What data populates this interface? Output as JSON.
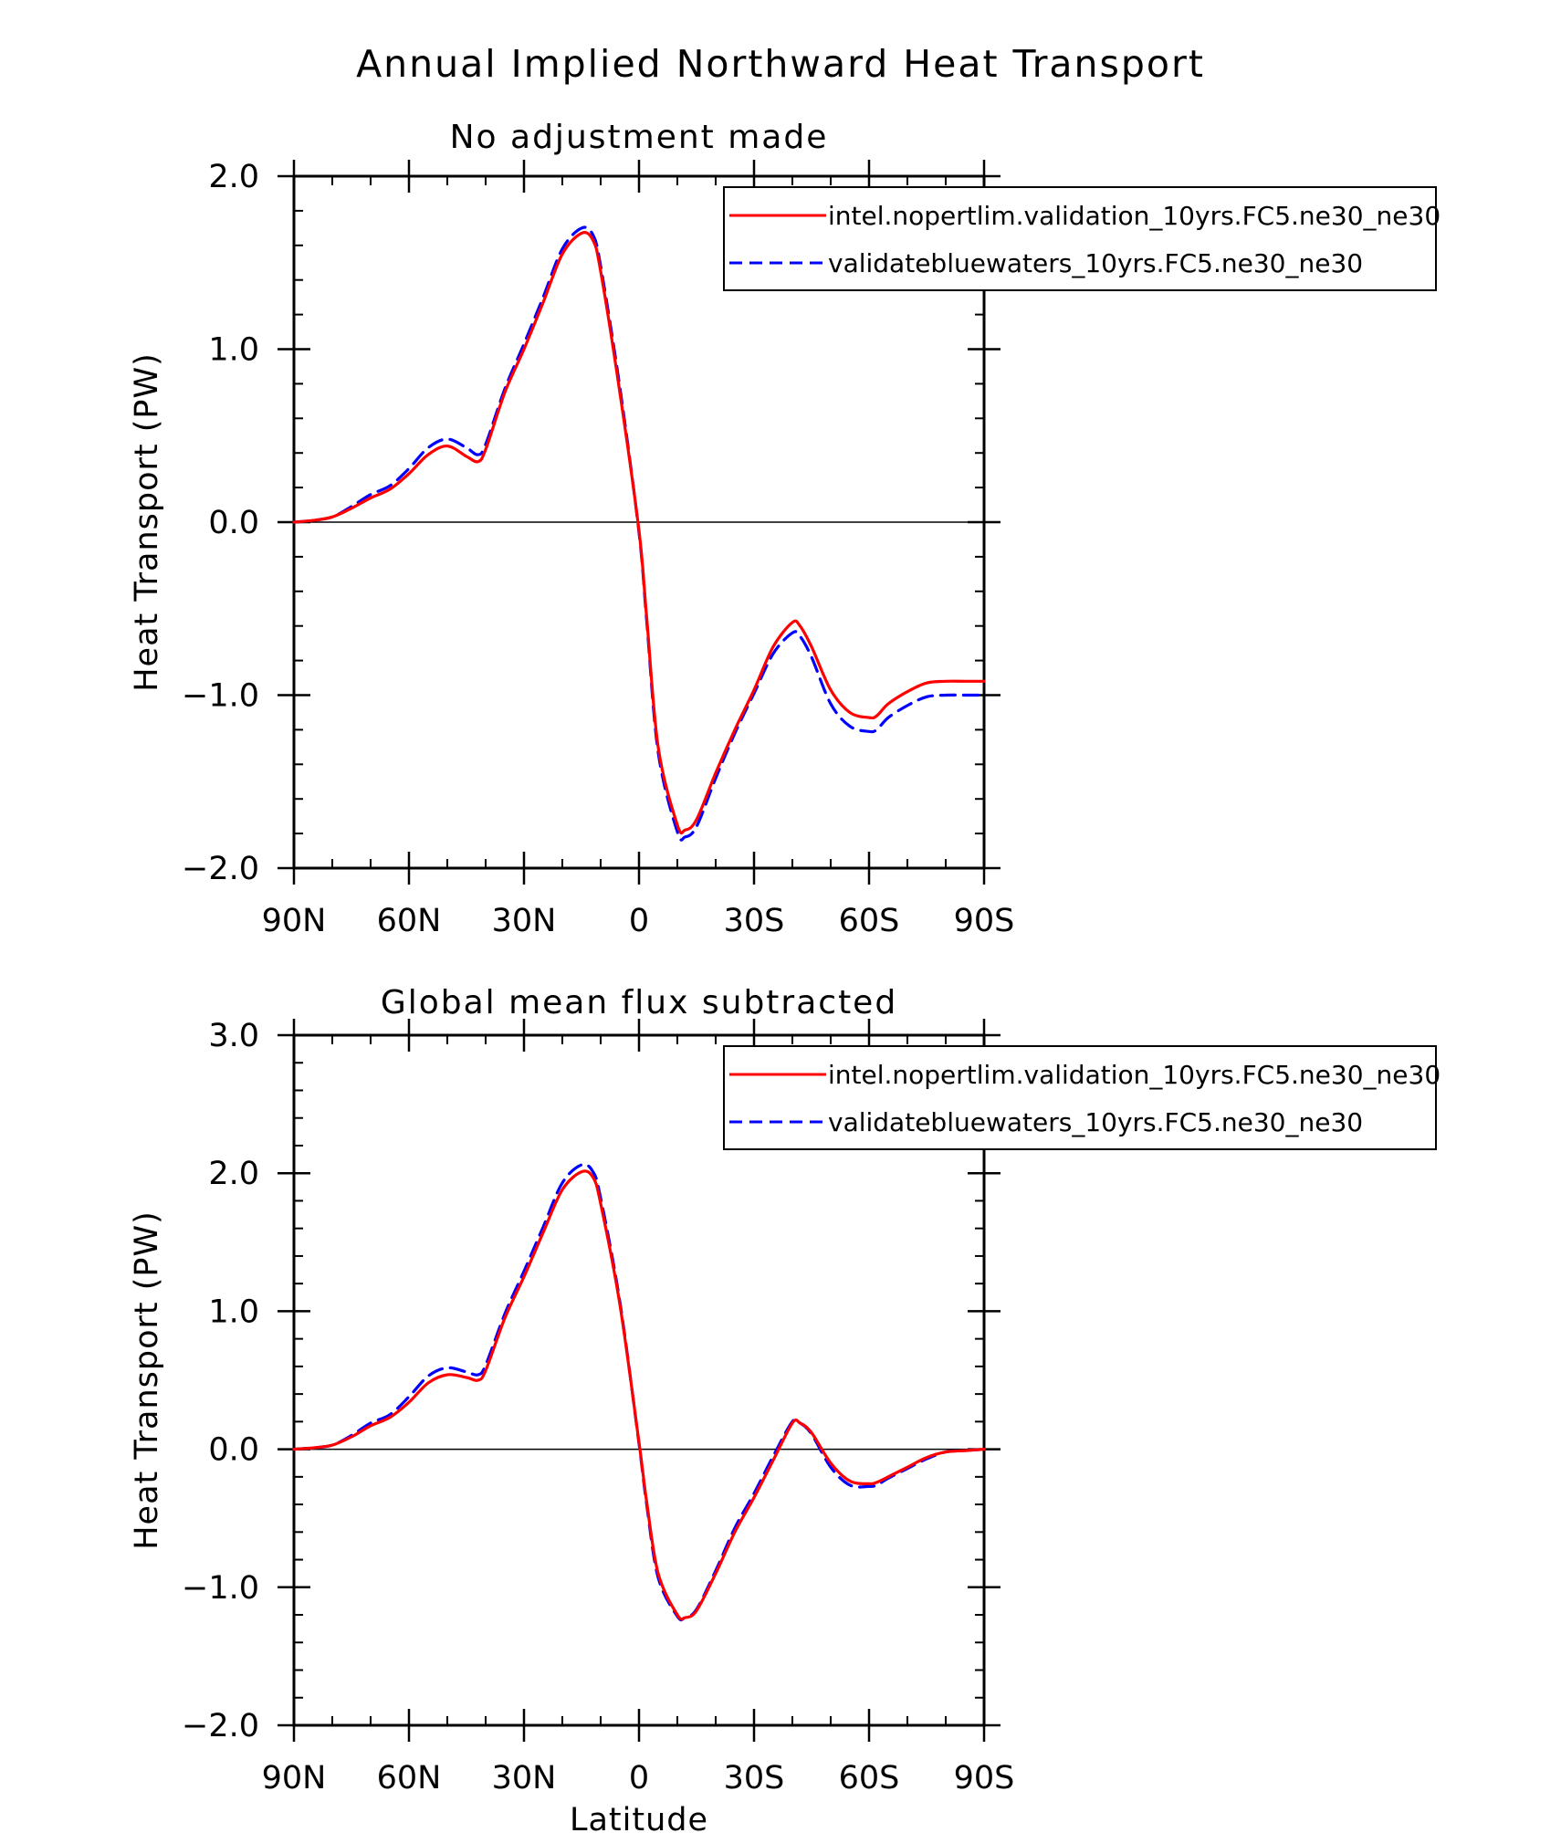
{
  "figure_title": "Annual Implied Northward Heat Transport",
  "legend": [
    {
      "label": "intel.nopertlim.validation_10yrs.FC5.ne30_ne30",
      "color": "#ff0000",
      "dash": "solid"
    },
    {
      "label": "validatebluewaters_10yrs.FC5.ne30_ne30",
      "color": "#0000ff",
      "dash": "dashed"
    }
  ],
  "chart_data": [
    {
      "type": "line",
      "title": "No adjustment made",
      "xlabel": "",
      "ylabel": "Heat Transport (PW)",
      "xlim": [
        -90,
        90
      ],
      "ylim": [
        -2.0,
        2.0
      ],
      "y_ticks": [
        2.0,
        1.0,
        0.0,
        -1.0,
        -2.0
      ],
      "y_tick_labels": [
        "2.0",
        "1.0",
        "0.0",
        "−1.0",
        "−2.0"
      ],
      "x_ticks": [
        -90,
        -60,
        -30,
        0,
        30,
        60,
        90
      ],
      "x_tick_labels": [
        "90N",
        "60N",
        "30N",
        "0",
        "30S",
        "60S",
        "90S"
      ],
      "zero_line": true,
      "series": [
        {
          "name": "intel.nopertlim.validation_10yrs.FC5.ne30_ne30",
          "color": "#ff0000",
          "dash": "solid",
          "x": [
            -90,
            -85,
            -80,
            -75,
            -70,
            -65,
            -60,
            -55,
            -50,
            -45,
            -42,
            -40,
            -35,
            -30,
            -25,
            -20,
            -15,
            -12,
            -10,
            -5,
            0,
            2,
            5,
            10,
            12,
            15,
            20,
            25,
            30,
            35,
            40,
            42,
            45,
            50,
            55,
            60,
            62,
            65,
            70,
            75,
            80,
            85,
            90
          ],
          "values": [
            0.0,
            0.01,
            0.03,
            0.08,
            0.14,
            0.19,
            0.28,
            0.39,
            0.44,
            0.38,
            0.35,
            0.42,
            0.75,
            1.0,
            1.27,
            1.55,
            1.67,
            1.63,
            1.45,
            0.75,
            -0.05,
            -0.55,
            -1.3,
            -1.75,
            -1.78,
            -1.72,
            -1.45,
            -1.2,
            -0.97,
            -0.72,
            -0.58,
            -0.6,
            -0.72,
            -0.97,
            -1.1,
            -1.13,
            -1.12,
            -1.05,
            -0.98,
            -0.93,
            -0.92,
            -0.92,
            -0.92
          ]
        },
        {
          "name": "validatebluewaters_10yrs.FC5.ne30_ne30",
          "color": "#0000ff",
          "dash": "dashed",
          "x": [
            -90,
            -85,
            -80,
            -75,
            -70,
            -65,
            -60,
            -55,
            -50,
            -45,
            -42,
            -40,
            -35,
            -30,
            -25,
            -20,
            -15,
            -12,
            -10,
            -5,
            0,
            2,
            5,
            10,
            12,
            15,
            20,
            25,
            30,
            35,
            40,
            42,
            45,
            50,
            55,
            60,
            62,
            65,
            70,
            75,
            80,
            85,
            90
          ],
          "values": [
            0.0,
            0.01,
            0.03,
            0.09,
            0.16,
            0.21,
            0.31,
            0.43,
            0.48,
            0.43,
            0.39,
            0.45,
            0.77,
            1.03,
            1.3,
            1.58,
            1.7,
            1.66,
            1.48,
            0.78,
            -0.06,
            -0.57,
            -1.33,
            -1.79,
            -1.82,
            -1.76,
            -1.48,
            -1.22,
            -0.99,
            -0.76,
            -0.64,
            -0.66,
            -0.78,
            -1.05,
            -1.18,
            -1.21,
            -1.2,
            -1.13,
            -1.06,
            -1.01,
            -1.0,
            -1.0,
            -1.0
          ]
        }
      ]
    },
    {
      "type": "line",
      "title": "Global mean flux subtracted",
      "xlabel": "Latitude",
      "ylabel": "Heat Transport (PW)",
      "xlim": [
        -90,
        90
      ],
      "ylim": [
        -2.0,
        3.0
      ],
      "y_ticks": [
        3.0,
        2.0,
        1.0,
        0.0,
        -1.0,
        -2.0
      ],
      "y_tick_labels": [
        "3.0",
        "2.0",
        "1.0",
        "0.0",
        "−1.0",
        "−2.0"
      ],
      "x_ticks": [
        -90,
        -60,
        -30,
        0,
        30,
        60,
        90
      ],
      "x_tick_labels": [
        "90N",
        "60N",
        "30N",
        "0",
        "30S",
        "60S",
        "90S"
      ],
      "zero_line": true,
      "series": [
        {
          "name": "intel.nopertlim.validation_10yrs.FC5.ne30_ne30",
          "color": "#ff0000",
          "dash": "solid",
          "x": [
            -90,
            -85,
            -80,
            -75,
            -70,
            -65,
            -60,
            -55,
            -50,
            -45,
            -42,
            -40,
            -35,
            -30,
            -25,
            -20,
            -15,
            -12,
            -10,
            -5,
            0,
            2,
            5,
            10,
            12,
            15,
            20,
            25,
            30,
            35,
            40,
            42,
            45,
            50,
            55,
            60,
            62,
            65,
            70,
            75,
            80,
            85,
            90
          ],
          "values": [
            0.0,
            0.01,
            0.03,
            0.09,
            0.17,
            0.23,
            0.34,
            0.48,
            0.54,
            0.52,
            0.5,
            0.57,
            0.95,
            1.25,
            1.57,
            1.88,
            2.01,
            1.97,
            1.78,
            1.05,
            0.05,
            -0.38,
            -0.9,
            -1.2,
            -1.22,
            -1.17,
            -0.9,
            -0.6,
            -0.35,
            -0.08,
            0.19,
            0.19,
            0.12,
            -0.1,
            -0.23,
            -0.25,
            -0.24,
            -0.2,
            -0.13,
            -0.06,
            -0.02,
            -0.01,
            0.0
          ]
        },
        {
          "name": "validatebluewaters_10yrs.FC5.ne30_ne30",
          "color": "#0000ff",
          "dash": "dashed",
          "x": [
            -90,
            -85,
            -80,
            -75,
            -70,
            -65,
            -60,
            -55,
            -50,
            -45,
            -42,
            -40,
            -35,
            -30,
            -25,
            -20,
            -15,
            -12,
            -10,
            -5,
            0,
            2,
            5,
            10,
            12,
            15,
            20,
            25,
            30,
            35,
            40,
            42,
            45,
            50,
            55,
            60,
            62,
            65,
            70,
            75,
            80,
            85,
            90
          ],
          "values": [
            0.0,
            0.01,
            0.03,
            0.1,
            0.19,
            0.25,
            0.38,
            0.53,
            0.59,
            0.56,
            0.54,
            0.61,
            0.98,
            1.29,
            1.61,
            1.93,
            2.06,
            2.01,
            1.82,
            1.07,
            0.04,
            -0.4,
            -0.93,
            -1.21,
            -1.22,
            -1.16,
            -0.88,
            -0.57,
            -0.32,
            -0.05,
            0.2,
            0.19,
            0.11,
            -0.13,
            -0.26,
            -0.27,
            -0.26,
            -0.21,
            -0.14,
            -0.07,
            -0.02,
            -0.01,
            0.0
          ]
        }
      ]
    }
  ]
}
